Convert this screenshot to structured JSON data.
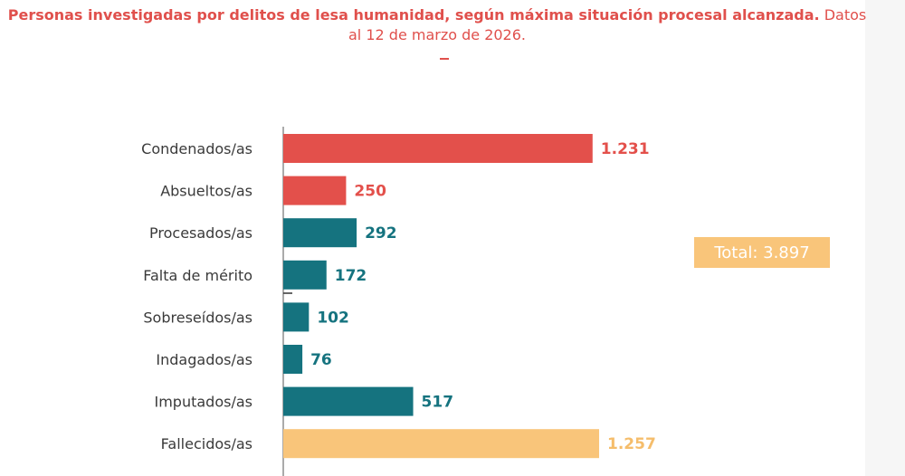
{
  "title": {
    "bold": "Personas investigadas por delitos de lesa humanidad, según máxima situación procesal alcanzada.",
    "regular": "Datos al 12 de marzo de 2026."
  },
  "total_label": "Total: 3.897",
  "colors": {
    "red": "#e3504b",
    "teal": "#15737f",
    "yellow": "#f9c57a",
    "yellow_text": "#f5bd6b"
  },
  "chart_data": {
    "type": "bar",
    "orientation": "horizontal",
    "categories": [
      "Condenados/as",
      "Absueltos/as",
      "Procesados/as",
      "Falta de mérito",
      "Sobreseídos/as",
      "Indagados/as",
      "Imputados/as",
      "Fallecidos/as"
    ],
    "values": [
      1231,
      250,
      292,
      172,
      102,
      76,
      517,
      1257
    ],
    "value_labels": [
      "1.231",
      "250",
      "292",
      "172",
      "102",
      "76",
      "517",
      "1.257"
    ],
    "bar_colors": [
      "red",
      "red",
      "teal",
      "teal",
      "teal",
      "teal",
      "teal",
      "yellow"
    ],
    "title": "Personas investigadas por delitos de lesa humanidad, según máxima situación procesal alcanzada. Datos al 12 de marzo de 2026.",
    "xlabel": "",
    "ylabel": "",
    "xlim": [
      0,
      1257
    ],
    "grid": false,
    "legend": "none"
  }
}
